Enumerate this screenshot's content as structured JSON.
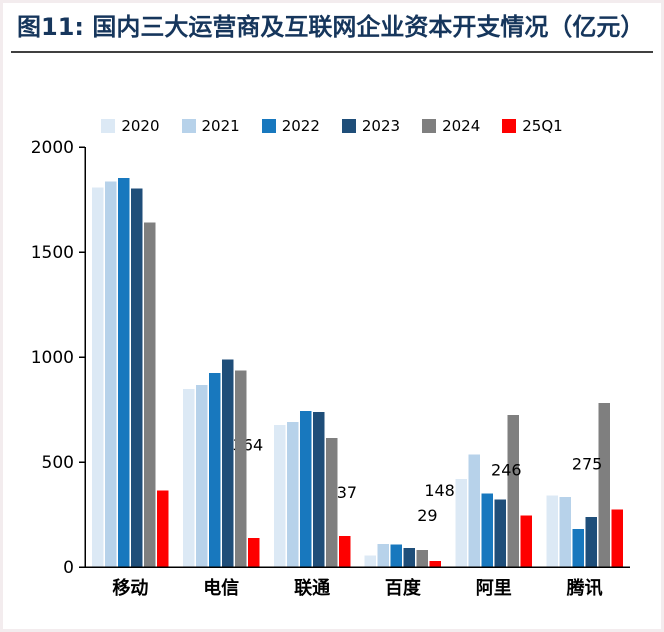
{
  "figure": {
    "title": "图11: 国内三大运营商及互联网企业资本开支情况（亿元）",
    "title_color": "#16365c"
  },
  "chart_data": {
    "type": "bar",
    "title": "国内三大运营商及互联网企业资本开支情况（亿元）",
    "xlabel": "",
    "ylabel": "",
    "ylim": [
      0,
      2000
    ],
    "yticks": [
      0,
      500,
      1000,
      1500,
      2000
    ],
    "grid": false,
    "legend_position": "top",
    "categories": [
      "移动",
      "电信",
      "联通",
      "百度",
      "阿里",
      "腾讯"
    ],
    "series": [
      {
        "name": "2020",
        "color": "#dce9f5",
        "values": [
          1806,
          848,
          676,
          55,
          420,
          340
        ]
      },
      {
        "name": "2021",
        "color": "#b7d2ea",
        "values": [
          1836,
          867,
          690,
          110,
          535,
          334
        ]
      },
      {
        "name": "2022",
        "color": "#1878be",
        "values": [
          1852,
          925,
          742,
          106,
          351,
          180
        ]
      },
      {
        "name": "2023",
        "color": "#1f4e79",
        "values": [
          1803,
          988,
          739,
          91,
          321,
          239
        ]
      },
      {
        "name": "2024",
        "color": "#7f7f7f",
        "values": [
          1640,
          935,
          614,
          82,
          724,
          780
        ]
      },
      {
        "name": "25Q1",
        "color": "#fe0000",
        "values": [
          364,
          137,
          148,
          29,
          246,
          275
        ],
        "show_labels": true
      }
    ],
    "data_labels": [
      "364",
      "137",
      "148",
      "29",
      "246",
      "275"
    ]
  }
}
